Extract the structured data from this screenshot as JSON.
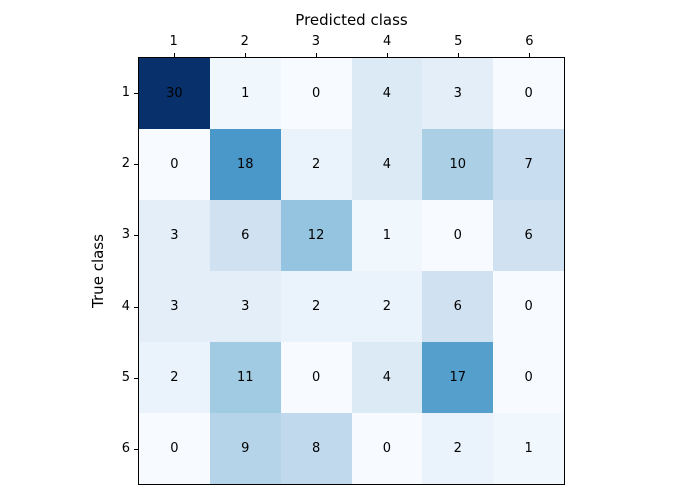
{
  "figure": {
    "background": "#ffffff"
  },
  "chart_data": {
    "type": "heatmap",
    "xlabel": "Predicted class",
    "ylabel": "True class",
    "x_tick_labels": [
      "1",
      "2",
      "3",
      "4",
      "5",
      "6"
    ],
    "y_tick_labels": [
      "1",
      "2",
      "3",
      "4",
      "5",
      "6"
    ],
    "matrix": [
      [
        30,
        1,
        0,
        4,
        3,
        0
      ],
      [
        0,
        18,
        2,
        4,
        10,
        7
      ],
      [
        3,
        6,
        12,
        1,
        0,
        6
      ],
      [
        3,
        3,
        2,
        2,
        6,
        0
      ],
      [
        2,
        11,
        0,
        4,
        17,
        0
      ],
      [
        0,
        9,
        8,
        0,
        2,
        1
      ]
    ],
    "vmin": 0,
    "vmax": 30,
    "colormap": {
      "name": "Blues",
      "stops": [
        "#f7fbff",
        "#deebf7",
        "#c6dbef",
        "#9ecae1",
        "#6baed6",
        "#4292c6",
        "#2171b5",
        "#08519c",
        "#08306b"
      ]
    },
    "annotation_text_color": "#000000",
    "axes_edge_color": "#000000",
    "legend": "none",
    "grid": false,
    "tick_positions": {
      "x": "top",
      "y": "left"
    }
  }
}
